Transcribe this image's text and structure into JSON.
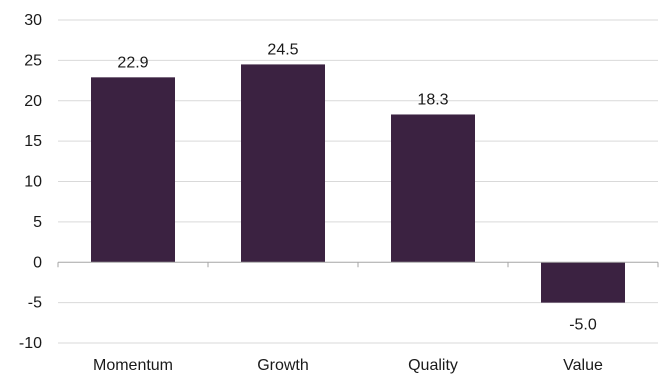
{
  "chart_data": {
    "type": "bar",
    "categories": [
      "Momentum",
      "Growth",
      "Quality",
      "Value"
    ],
    "values": [
      22.9,
      24.5,
      18.3,
      -5.0
    ],
    "data_labels": [
      "22.9",
      "24.5",
      "18.3",
      "-5.0"
    ],
    "title": "",
    "xlabel": "",
    "ylabel": "",
    "ylim": [
      -10,
      30
    ],
    "yticks": [
      "30",
      "25",
      "20",
      "15",
      "10",
      "5",
      "0",
      "-5",
      "-10"
    ],
    "ytick_values": [
      30,
      25,
      20,
      15,
      10,
      5,
      0,
      -5,
      -10
    ],
    "grid": true,
    "legend": "none",
    "bar_color": "#3b2241",
    "grid_color": "#d9d9d9"
  }
}
